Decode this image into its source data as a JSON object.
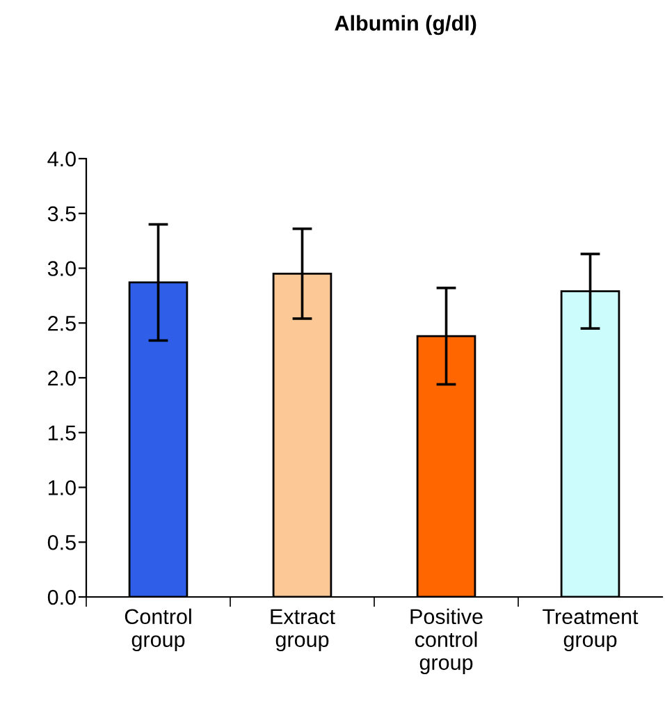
{
  "chart_data": {
    "type": "bar",
    "title": "Albumin (g/dl)",
    "categories": [
      "Control\ngroup",
      "Extract\ngroup",
      "Positive\ncontrol\ngroup",
      "Treatment\ngroup"
    ],
    "values": [
      2.87,
      2.95,
      2.38,
      2.79
    ],
    "errors": [
      0.53,
      0.41,
      0.44,
      0.34
    ],
    "colors": [
      "#2f5fe8",
      "#fcc896",
      "#ff6600",
      "#ccfcfc"
    ],
    "ylim": [
      0,
      4.0
    ],
    "yticks": [
      {
        "value": 0,
        "label": "0.0"
      },
      {
        "value": 0.5,
        "label": "0.5"
      },
      {
        "value": 1.0,
        "label": "1.0"
      },
      {
        "value": 1.5,
        "label": "1.5"
      },
      {
        "value": 2.0,
        "label": "2.0"
      },
      {
        "value": 2.5,
        "label": "2.5"
      },
      {
        "value": 3.0,
        "label": "3.0"
      },
      {
        "value": 3.5,
        "label": "3.5"
      },
      {
        "value": 4.0,
        "label": "4.0"
      }
    ],
    "grid": false
  }
}
